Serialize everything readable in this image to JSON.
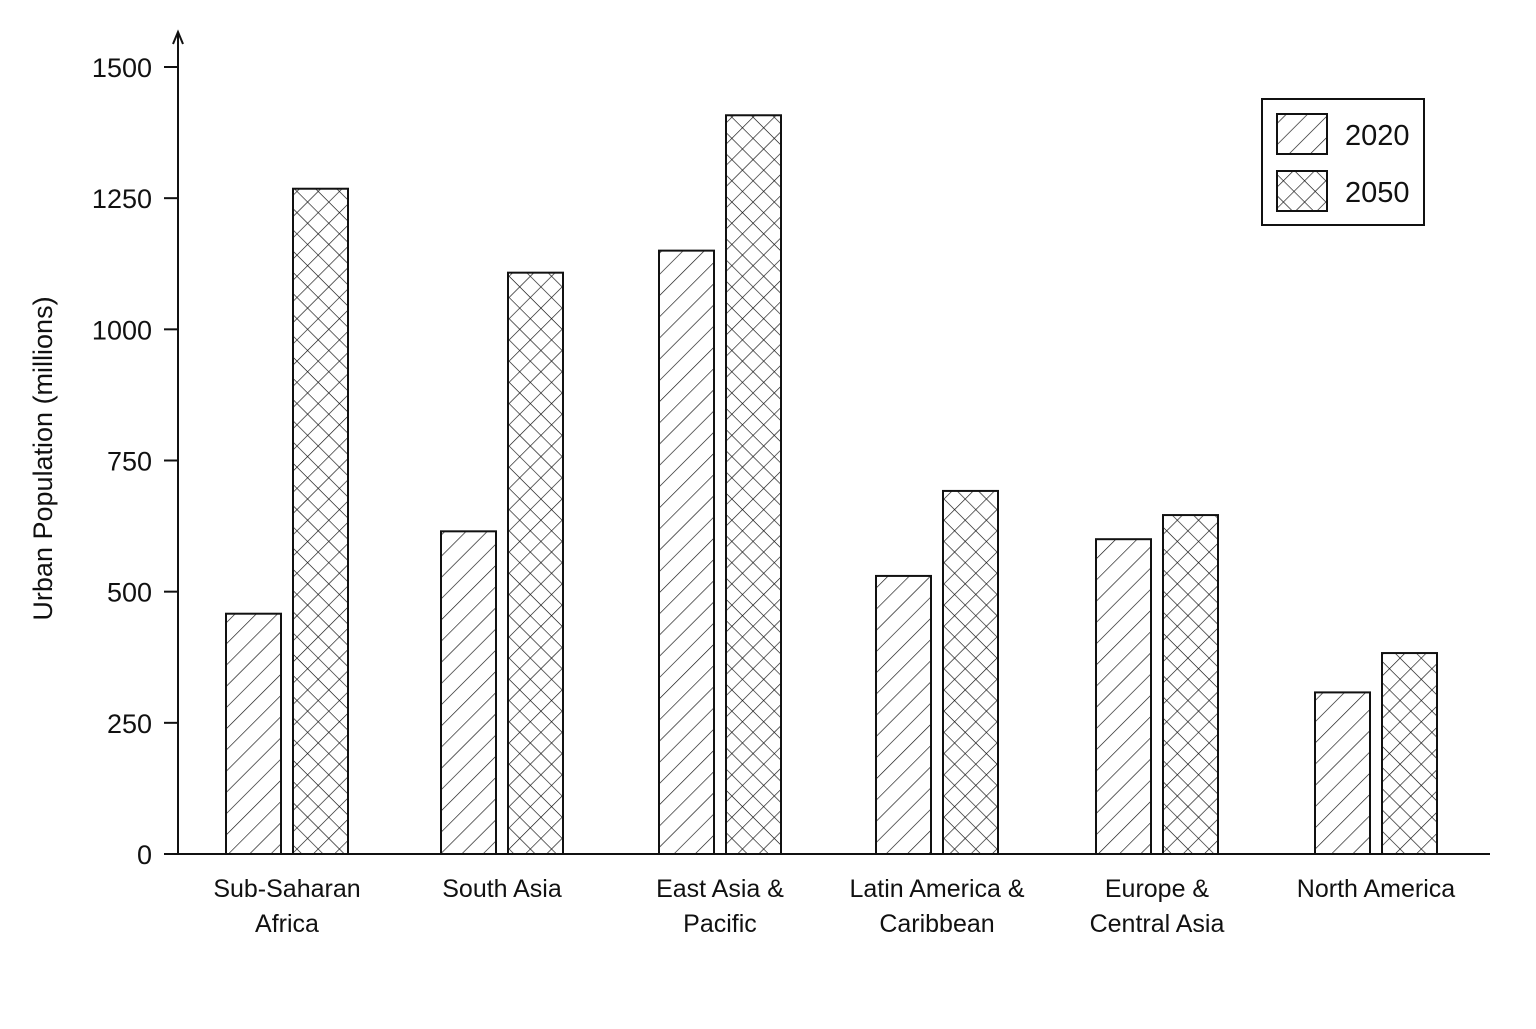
{
  "chart_data": {
    "type": "bar",
    "title": "",
    "xlabel": "",
    "ylabel": "Urban Population (millions)",
    "ylim": [
      0,
      1500
    ],
    "yticks": [
      0,
      250,
      500,
      750,
      1000,
      1250,
      1500
    ],
    "grid": false,
    "legend_position": "top-right",
    "categories": [
      [
        "Sub-Saharan",
        "Africa"
      ],
      [
        "South Asia"
      ],
      [
        "East Asia &",
        "Pacific"
      ],
      [
        "Latin America &",
        "Caribbean"
      ],
      [
        "Europe &",
        "Central Asia"
      ],
      [
        "North America"
      ]
    ],
    "series": [
      {
        "name": "2020",
        "pattern": "diagonal-hatch",
        "values": [
          458,
          615,
          1150,
          530,
          600,
          308
        ]
      },
      {
        "name": "2050",
        "pattern": "cross-hatch",
        "values": [
          1268,
          1108,
          1408,
          692,
          646,
          383
        ]
      }
    ],
    "colors": {
      "ink": "#111111",
      "fill": "#ffffff"
    }
  }
}
